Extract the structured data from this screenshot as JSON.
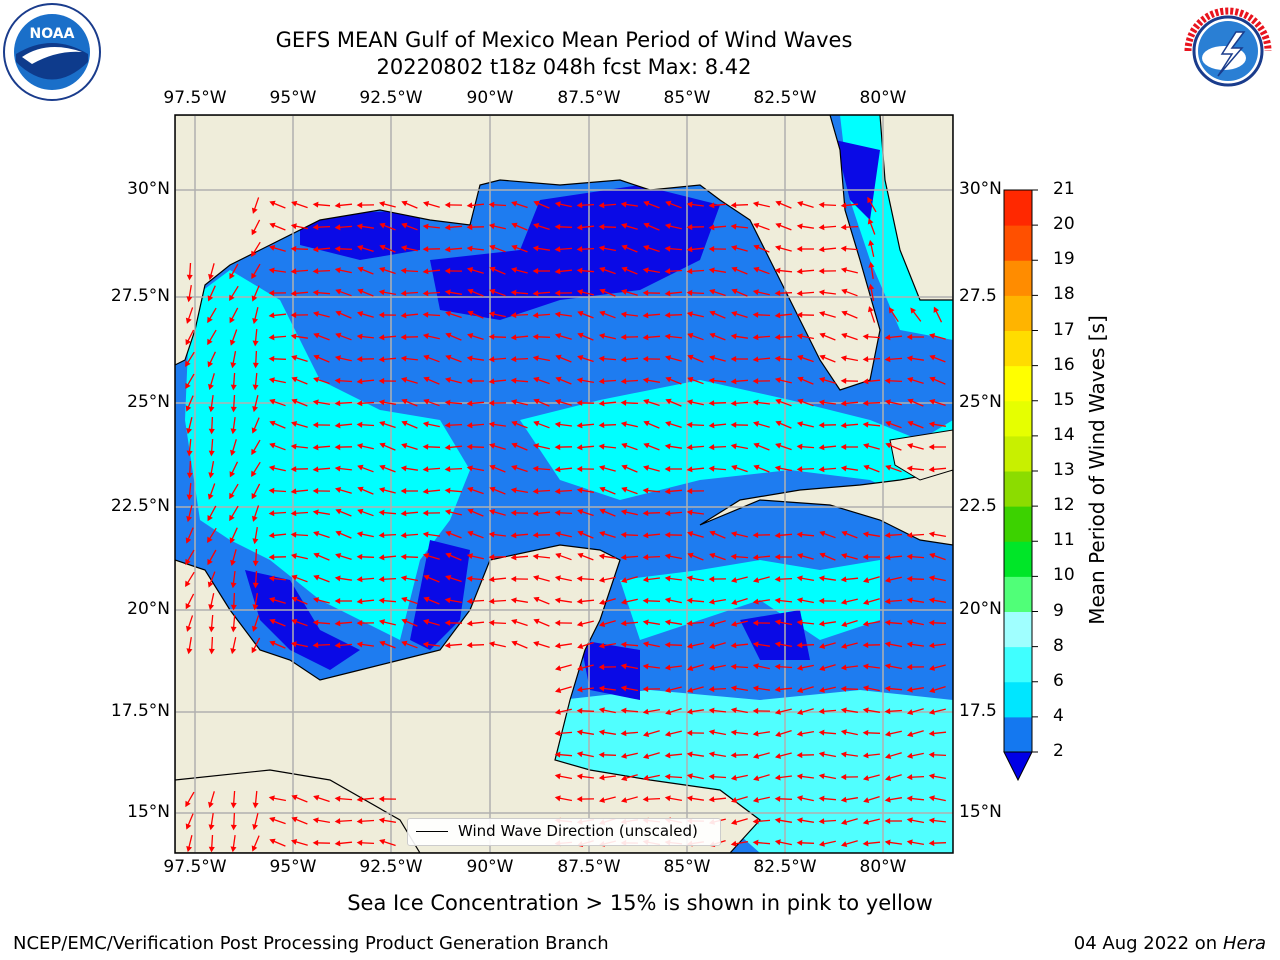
{
  "title": {
    "line1": "GEFS MEAN Gulf of Mexico Mean Period of Wind Waves",
    "line2": "20220802 t18z 048h fcst   Max: 8.42"
  },
  "map": {
    "lon_labels": [
      "97.5°W",
      "95°W",
      "92.5°W",
      "90°W",
      "87.5°W",
      "85°W",
      "82.5°W",
      "80°W"
    ],
    "lat_labels_left": [
      "30°N",
      "27.5°N",
      "25°N",
      "22.5°N",
      "20°N",
      "17.5°N",
      "15°N"
    ],
    "lat_labels_right": [
      "30°N",
      "27.5",
      "25°N",
      "22.5",
      "20°N",
      "17.5",
      "15°N"
    ],
    "lon_range": [
      -98,
      -78.2
    ],
    "lat_range": [
      14.0,
      31.8
    ],
    "colors": {
      "land": "#efedda",
      "dark_blue": "#0a0ae6",
      "mid_blue": "#1e7cf0",
      "cyan": "#00ffff",
      "light_cyan": "#50ffff",
      "arrow": "#ff0000"
    }
  },
  "legend": {
    "label": "Wind Wave Direction (unscaled)"
  },
  "colorbar": {
    "title": "Mean Period of Wind Waves [s]",
    "levels": [
      2,
      4,
      6,
      8,
      9,
      10,
      11,
      12,
      13,
      14,
      15,
      16,
      17,
      18,
      19,
      20,
      21
    ],
    "labels": [
      "2",
      "4",
      "6",
      "8",
      "9",
      "10",
      "11",
      "12",
      "13",
      "14",
      "15",
      "16",
      "17",
      "18",
      "19",
      "20",
      "21"
    ],
    "colors": [
      "#1478f0",
      "#00e6ff",
      "#40ffff",
      "#a0ffff",
      "#50ff78",
      "#00e628",
      "#3cd200",
      "#8cdc00",
      "#c8f000",
      "#e6ff00",
      "#ffff00",
      "#ffdc00",
      "#ffb400",
      "#ff8c00",
      "#ff5000",
      "#ff2800",
      "#ff0000"
    ],
    "under_color": "#0000e6"
  },
  "notes": {
    "seaice": "Sea Ice Concentration > 15% is shown in pink to yellow",
    "credit_left": "NCEP/EMC/Verification Post Processing Product Generation Branch",
    "credit_date": "04 Aug 2022 on",
    "credit_host": "Hera"
  },
  "logos": {
    "left": "noaa-logo",
    "right": "nws-logo"
  }
}
